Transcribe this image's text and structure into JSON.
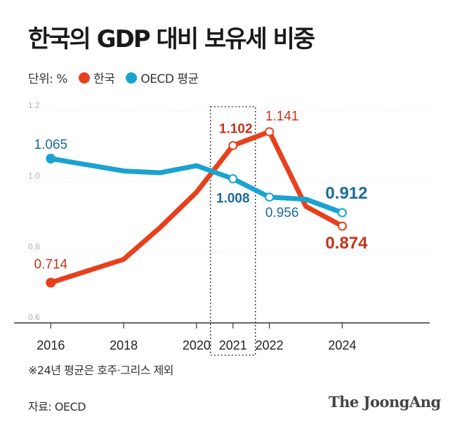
{
  "title": "한국의 GDP 대비 보유세 비중",
  "legend": {
    "unit": "단위: %",
    "items": [
      {
        "label": "한국",
        "color": "#e8401c"
      },
      {
        "label": "OECD 평균",
        "color": "#1aa3d0"
      }
    ]
  },
  "footnote": "※24년 평균은 호주·그리스 제외",
  "source": "자료: OECD",
  "brand": "The JoongAng",
  "chart_data": {
    "type": "line",
    "x_ticks": [
      "2016",
      "2018",
      "2020",
      "2021",
      "2022",
      "2024"
    ],
    "y_ticks": [
      "1.2",
      "1.0",
      "0.8",
      "0.6"
    ],
    "ylim": [
      0.6,
      1.2
    ],
    "xlim": [
      2015.3,
      2026.4
    ],
    "highlight_x": 2021,
    "series": [
      {
        "name": "한국",
        "color": "#e8401c",
        "label_color": "#c8321a",
        "points": [
          {
            "x": 2016,
            "y": 0.714,
            "label": "0.714"
          },
          {
            "x": 2018,
            "y": 0.78
          },
          {
            "x": 2019,
            "y": 0.87
          },
          {
            "x": 2020,
            "y": 0.97
          },
          {
            "x": 2021,
            "y": 1.102,
            "label": "1.102"
          },
          {
            "x": 2022,
            "y": 1.141,
            "label": "1.141"
          },
          {
            "x": 2023,
            "y": 0.93
          },
          {
            "x": 2024,
            "y": 0.874,
            "label": "0.874"
          }
        ]
      },
      {
        "name": "OECD 평균",
        "color": "#1aa3d0",
        "label_color": "#1a6a9a",
        "points": [
          {
            "x": 2016,
            "y": 1.065,
            "label": "1.065"
          },
          {
            "x": 2018,
            "y": 1.03
          },
          {
            "x": 2019,
            "y": 1.025
          },
          {
            "x": 2020,
            "y": 1.045
          },
          {
            "x": 2021,
            "y": 1.008,
            "label": "1.008"
          },
          {
            "x": 2022,
            "y": 0.956,
            "label": "0.956"
          },
          {
            "x": 2023,
            "y": 0.95
          },
          {
            "x": 2024,
            "y": 0.912,
            "label": "0.912"
          }
        ]
      }
    ]
  }
}
